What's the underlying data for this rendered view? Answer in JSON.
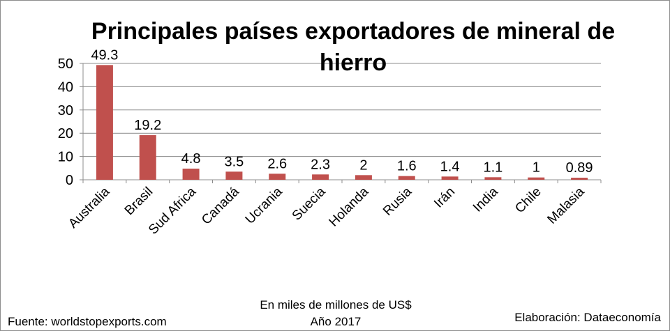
{
  "chart_data": {
    "type": "bar",
    "title_lines": [
      "Principales países exportadores de mineral de",
      "hierro"
    ],
    "categories": [
      "Australia",
      "Brasil",
      "Sud Africa",
      "Canadá",
      "Ucrania",
      "Suecia",
      "Holanda",
      "Rusia",
      "Irán",
      "India",
      "Chile",
      "Malasia"
    ],
    "values": [
      49.3,
      19.2,
      4.8,
      3.5,
      2.6,
      2.3,
      2,
      1.6,
      1.4,
      1.1,
      1,
      0.89
    ],
    "value_labels": [
      "49.3",
      "19.2",
      "4.8",
      "3.5",
      "2.6",
      "2.3",
      "2",
      "1.6",
      "1.4",
      "1.1",
      "1",
      "0.89"
    ],
    "ylim": [
      0,
      50
    ],
    "yticks": [
      "0",
      "10",
      "20",
      "30",
      "40",
      "50"
    ],
    "grid": true,
    "bar_color": "#c0504d",
    "unit_line": "En miles de millones de US$",
    "year_line": "Año 2017"
  },
  "footer": {
    "source": "Fuente:  worldstopexports.com",
    "credit": "Elaboración: Dataeconomía"
  }
}
